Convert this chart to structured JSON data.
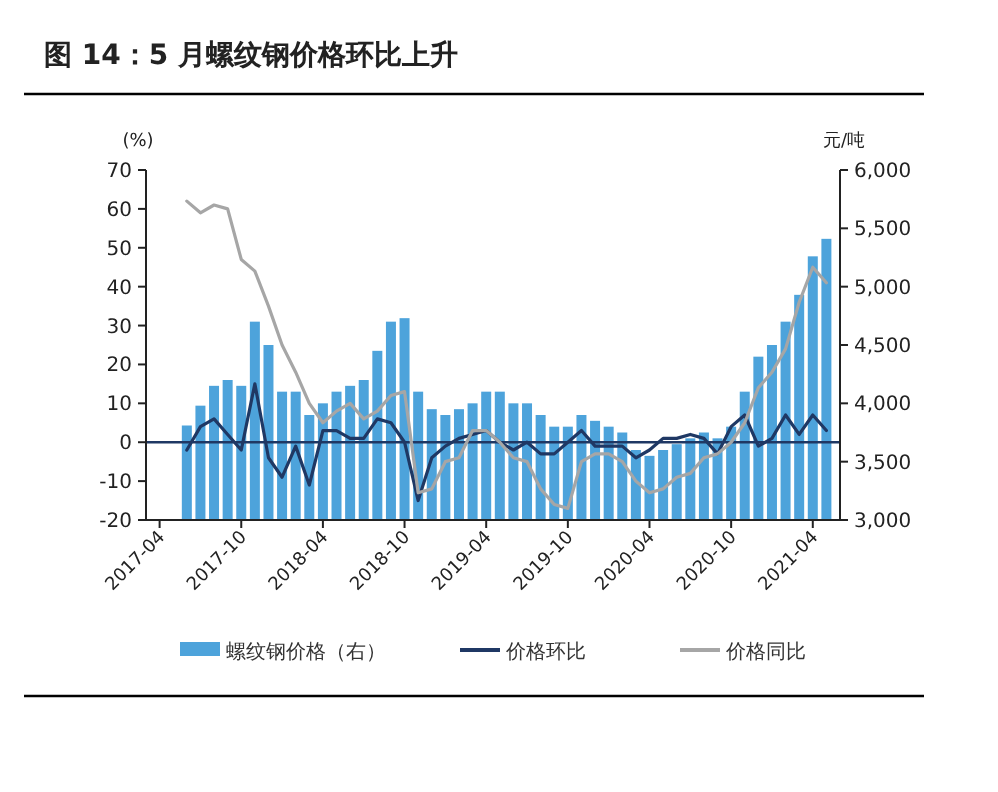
{
  "chart_data": {
    "type": "bar",
    "title": "图 14：5 月螺纹钢价格环比上升",
    "ylabel": "(%)",
    "y2label": "元/吨",
    "x": [
      "2017-06",
      "2017-07",
      "2017-08",
      "2017-09",
      "2017-10",
      "2017-11",
      "2017-12",
      "2018-01",
      "2018-02",
      "2018-03",
      "2018-04",
      "2018-05",
      "2018-06",
      "2018-07",
      "2018-08",
      "2018-09",
      "2018-10",
      "2018-11",
      "2018-12",
      "2019-01",
      "2019-02",
      "2019-03",
      "2019-04",
      "2019-05",
      "2019-06",
      "2019-07",
      "2019-08",
      "2019-09",
      "2019-10",
      "2019-11",
      "2019-12",
      "2020-01",
      "2020-02",
      "2020-03",
      "2020-04",
      "2020-05",
      "2020-06",
      "2020-07",
      "2020-08",
      "2020-09",
      "2020-10",
      "2020-11",
      "2020-12",
      "2021-01",
      "2021-02",
      "2021-03",
      "2021-04",
      "2021-05"
    ],
    "series": [
      {
        "name": "螺纹钢价格（右）",
        "axis": "y2",
        "color": "#4da3db",
        "values": [
          3810,
          3980,
          4150,
          4200,
          4150,
          4700,
          4500,
          4100,
          4100,
          3900,
          4000,
          4100,
          4150,
          4200,
          4450,
          4700,
          4730,
          4100,
          3950,
          3900,
          3950,
          4000,
          4100,
          4100,
          4000,
          4000,
          3900,
          3800,
          3800,
          3900,
          3850,
          3800,
          3750,
          3600,
          3550,
          3600,
          3650,
          3700,
          3750,
          3700,
          3800,
          4100,
          4400,
          4500,
          4700,
          4930,
          5260,
          5410
        ]
      },
      {
        "name": "价格环比",
        "type": "line",
        "color": "#1f3864",
        "values": [
          -2,
          4,
          6,
          2,
          -2,
          15,
          -4,
          -9,
          -1,
          -11,
          3,
          3,
          1,
          1,
          6,
          5,
          0,
          -15,
          -4,
          -1,
          1,
          2,
          3,
          0,
          -2,
          0,
          -3,
          -3,
          0,
          3,
          -1,
          -1,
          -1,
          -4,
          -2,
          1,
          1,
          2,
          1,
          -3,
          4,
          7,
          -1,
          1,
          7,
          2,
          7,
          3
        ]
      },
      {
        "name": "价格同比",
        "type": "line",
        "color": "#a6a6a6",
        "values": [
          62,
          59,
          61,
          60,
          47,
          44,
          35,
          25,
          18,
          10,
          5,
          8,
          10,
          6,
          8,
          12,
          13,
          -13,
          -12,
          -5,
          -4,
          3,
          3,
          0,
          -4,
          -5,
          -12,
          -16,
          -17,
          -5,
          -3,
          -3,
          -5,
          -10,
          -13,
          -12,
          -9,
          -8,
          -4,
          -3,
          0,
          5,
          14,
          18,
          24,
          36,
          45,
          41
        ]
      }
    ],
    "xlim": [
      "2017-03",
      "2021-06"
    ],
    "xticks": [
      {
        "value": "2017-04",
        "label": "2017-04"
      },
      {
        "value": "2017-10",
        "label": "2017-10"
      },
      {
        "value": "2018-04",
        "label": "2018-04"
      },
      {
        "value": "2018-10",
        "label": "2018-10"
      },
      {
        "value": "2019-04",
        "label": "2019-04"
      },
      {
        "value": "2019-10",
        "label": "2019-10"
      },
      {
        "value": "2020-04",
        "label": "2020-04"
      },
      {
        "value": "2020-10",
        "label": "2020-10"
      },
      {
        "value": "2021-04",
        "label": "2021-04"
      }
    ],
    "ylim": [
      -20,
      70
    ],
    "yticks": [
      -20,
      -10,
      0,
      10,
      20,
      30,
      40,
      50,
      60,
      70
    ],
    "y2lim": [
      3000,
      6000
    ],
    "y2ticks": [
      {
        "value": 3000,
        "label": "3,000"
      },
      {
        "value": 3500,
        "label": "3,500"
      },
      {
        "value": 4000,
        "label": "4,000"
      },
      {
        "value": 4500,
        "label": "4,500"
      },
      {
        "value": 5000,
        "label": "5,000"
      },
      {
        "value": 5500,
        "label": "5,500"
      },
      {
        "value": 6000,
        "label": "6,000"
      }
    ],
    "ref_lines": [
      {
        "axis": "y",
        "value": 0,
        "color": "#1f3864"
      }
    ],
    "legend": "bottom"
  }
}
